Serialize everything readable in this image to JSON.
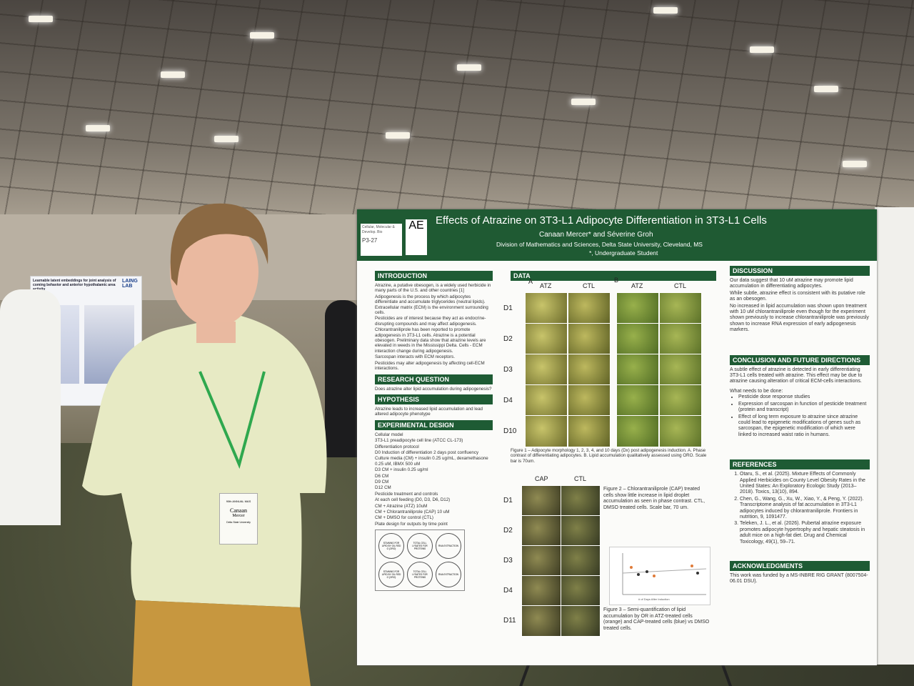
{
  "scene": {
    "left_poster": {
      "title": "Learnable latent embeddings for joint analysis of coming behavior and anterior hypothalamic area activity",
      "logo": "LAING LAB"
    },
    "badge": {
      "event": "90th ANNUAL MAS",
      "first_name": "Canaan",
      "last_name": "Mercer",
      "school": "Delta State University"
    },
    "sticky_note": {
      "lines": [
        "Cellular, Molecular &",
        "Develop. Bio"
      ],
      "code": "P3-27"
    },
    "poster": {
      "title": "Effects of Atrazine on 3T3-L1 Adipocyte Differentiation in 3T3-L1 Cells",
      "logo": "AE",
      "authors": "Canaan Mercer* and Séverine Groh",
      "affiliation": "Division of Mathematics and Sciences, Delta State University, Cleveland, MS",
      "note": "*, Undergraduate Student",
      "introduction": {
        "heading": "INTRODUCTION",
        "paragraphs": [
          "Atrazine, a putative obesogen, is a widely used herbicide in many parts of the U.S. and other countries [1]",
          "Adipogenesis is the process by which adipocytes differentiate and accumulate triglycerides (neutral lipids). Extracellular matrix (ECM) is the environment surrounding cells.",
          "Pesticides are of interest because they act as endocrine-disrupting compounds and may affect adipogenesis.",
          "Chlorantraniliprole has been reported to promote adipogenesis in 3T3-L1 cells. Atrazine is a potential obesogen. Preliminary data show that atrazine levels are elevated in weeds in the Mississippi Delta. Cells - ECM interaction change during adipogenesis.",
          "Sarcospan interacts with ECM receptors.",
          "Pesticides may alter adipogenesis by affecting cell-ECM interactions."
        ]
      },
      "research_question": {
        "heading": "RESEARCH QUESTION",
        "text": "Does atrazine alter lipid accumulation during adipogenesis?"
      },
      "hypothesis": {
        "heading": "HYPOTHESIS",
        "text": "Atrazine leads to increased lipid accumulation and lead altered adipocyte phenotype"
      },
      "experimental_design": {
        "heading": "EXPERIMENTAL DESIGN",
        "lines": [
          "Cellular model",
          "3T3-L1 preadipocyte cell line (ATCC CL-173)",
          "Differentiation protocol",
          "D0   Induction of differentiation 2 days post confluency",
          "Culture media (CM) + insulin 0.25 ug/mL, dexamethasone 0.25 uM, IBMX 500 uM",
          "D3   CM + insulin 0.25 ug/ml",
          "D6   CM",
          "D9   CM",
          "D12  CM",
          "Pesticide treatment and controls",
          "At each cell feeding (D0, D3, D6, D12)",
          "CM + Atrazine (ATZ) 10uM",
          "CM + Chlorantraniliprole (CAP) 10 uM",
          "CM + DMSO for control (CTL)",
          "Plate design for outputs by time point"
        ],
        "wells": [
          "STAINING FOR LIPID BY OIL RED O (ORO)",
          "TOTAL CELL LYSATES FOR PROTEINS",
          "RNA EXTRACTION",
          "STAINING FOR LIPID BY OIL RED O (ORO)",
          "TOTAL CELL LYSATES FOR PROTEINS",
          "RNA EXTRACTION"
        ]
      },
      "data": {
        "heading": "DATA",
        "panel_a": "A",
        "panel_b": "B",
        "columns": [
          "ATZ",
          "CTL",
          "ATZ",
          "CTL"
        ],
        "rows": [
          "D1",
          "D2",
          "D3",
          "D4",
          "D10"
        ],
        "figure1": "Figure 1 – Adipocyte morphology 1, 2, 3, 4, and 10 days (Dx) post adipogenesis induction. A. Phase contrast of differentiating adipocytes. B. Lipid accumulation qualitatively assessed using ORO. Scale bar is 70um.",
        "cap_columns": [
          "CAP",
          "CTL"
        ],
        "cap_rows": [
          "D1",
          "D2",
          "D3",
          "D4",
          "D11"
        ],
        "figure2": "Figure 2 – Chlorantraniliprole (CAP) treated cells show little increase in lipid droplet accumulation as seen in phase contrast. CTL, DMSO treated cells. Scale bar, 70 um.",
        "figure3_axis": "# of Days After Induction",
        "figure3": "Figure 3 – Semi-quantification of lipid accumulation by OR in ATZ-treated cells (orange) and CAP-treated cells (blue) vs DMSO treated cells."
      },
      "discussion": {
        "heading": "DISCUSSION",
        "paragraphs": [
          "Our data suggest that 10 uM atrazine may promote lipid accumulation in differentiating adipocytes.",
          "While subtle, atrazine effect is consistent with its putative role as an obesogen.",
          "No increased in lipid accumulation was shown upon treatment with 10 uM chlorantraniliprole even though for the experiment shown previously to increase chlorantraniliprole was previously shown to increase RNA expression of early adipogenesis markers."
        ]
      },
      "conclusion": {
        "heading": "CONCLUSION AND FUTURE DIRECTIONS",
        "text": "A subtle effect of atrazine is detected in early differentiating 3T3-L1 cells treated with atrazine. This effect may be due to atrazine causing alteration of critical ECM-cells interactions.",
        "todo": "What needs to be done:",
        "bullets": [
          "Pesticide dose response studies",
          "Expression of sarcospan in function of pesticide treatment (protein and transcript)",
          "Effect of long term exposure to atrazine since atrazine could lead to epigenetic modifications of genes such as sarcospan, the epigenetic modification of which were linked to increased waist ratio in humans."
        ]
      },
      "references": {
        "heading": "REFERENCES",
        "items": [
          "Otaru, S., et al. (2025). Mixture Effects of Commonly Applied Herbicides on County Level Obesity Rates in the United States: An Exploratory Ecologic Study (2013–2018). Toxics, 13(10), 894.",
          "Chen, G., Wang, G., Xu, W., Xiao, Y., & Peng, Y. (2022). Transcriptome analysis of fat accumulation in 3T3-L1 adipocytes induced by chlorantraniliprole. Frontiers in nutrition, 9, 1091477.",
          "Teleken, J. L., et al. (2026). Pubertal atrazine exposure promotes adipocyte hypertrophy and hepatic steatosis in adult mice on a high-fat diet. Drug and Chemical Toxicology, 49(1), 59–71."
        ]
      },
      "acknowledgments": {
        "heading": "ACKNOWLEDGMENTS",
        "text": "This work was funded by a MS-INBRE RIG GRANT (8007504-06.01 DSU)."
      }
    }
  }
}
